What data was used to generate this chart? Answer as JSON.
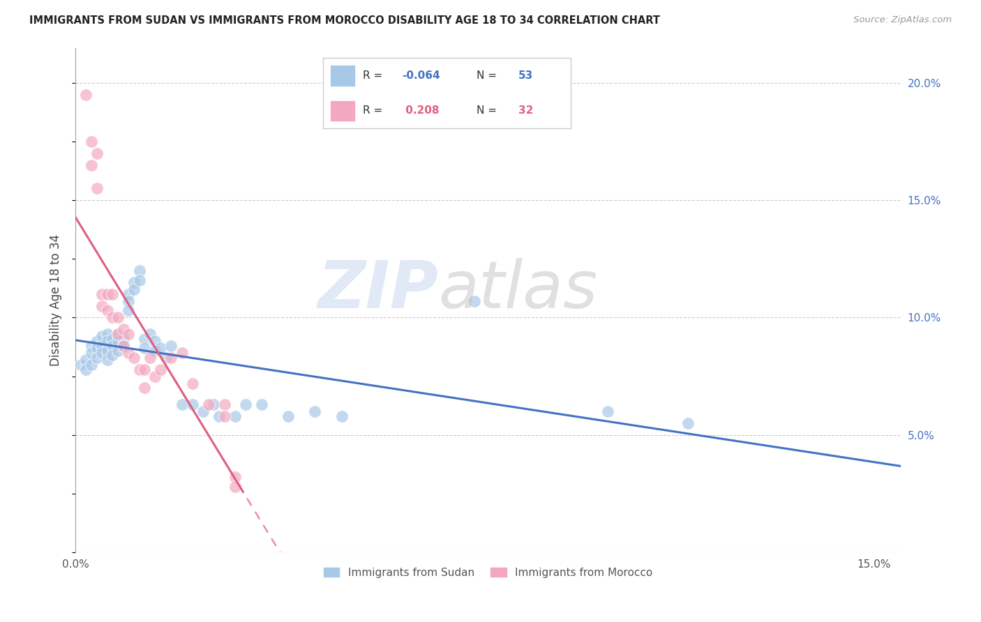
{
  "title": "IMMIGRANTS FROM SUDAN VS IMMIGRANTS FROM MOROCCO DISABILITY AGE 18 TO 34 CORRELATION CHART",
  "source": "Source: ZipAtlas.com",
  "ylabel": "Disability Age 18 to 34",
  "xlim": [
    0.0,
    0.155
  ],
  "ylim": [
    0.0,
    0.215
  ],
  "sudan_color": "#A8C8E8",
  "morocco_color": "#F4A8C0",
  "sudan_line_color": "#4472C4",
  "morocco_line_color": "#E06080",
  "sudan_R": -0.064,
  "sudan_N": 53,
  "morocco_R": 0.208,
  "morocco_N": 32,
  "sudan_x": [
    0.001,
    0.002,
    0.002,
    0.003,
    0.003,
    0.003,
    0.004,
    0.004,
    0.004,
    0.005,
    0.005,
    0.005,
    0.006,
    0.006,
    0.006,
    0.006,
    0.007,
    0.007,
    0.007,
    0.008,
    0.008,
    0.008,
    0.009,
    0.009,
    0.01,
    0.01,
    0.01,
    0.011,
    0.011,
    0.012,
    0.012,
    0.013,
    0.013,
    0.014,
    0.015,
    0.015,
    0.016,
    0.017,
    0.018,
    0.02,
    0.022,
    0.024,
    0.026,
    0.027,
    0.03,
    0.032,
    0.035,
    0.04,
    0.045,
    0.05,
    0.075,
    0.1,
    0.115
  ],
  "sudan_y": [
    0.08,
    0.082,
    0.078,
    0.088,
    0.085,
    0.08,
    0.09,
    0.087,
    0.083,
    0.092,
    0.088,
    0.085,
    0.093,
    0.09,
    0.086,
    0.082,
    0.091,
    0.088,
    0.084,
    0.093,
    0.09,
    0.086,
    0.091,
    0.088,
    0.11,
    0.107,
    0.103,
    0.115,
    0.112,
    0.12,
    0.116,
    0.091,
    0.087,
    0.093,
    0.09,
    0.086,
    0.087,
    0.083,
    0.088,
    0.063,
    0.063,
    0.06,
    0.063,
    0.058,
    0.058,
    0.063,
    0.063,
    0.058,
    0.06,
    0.058,
    0.107,
    0.06,
    0.055
  ],
  "morocco_x": [
    0.002,
    0.003,
    0.003,
    0.004,
    0.004,
    0.005,
    0.005,
    0.006,
    0.006,
    0.007,
    0.007,
    0.008,
    0.008,
    0.009,
    0.009,
    0.01,
    0.01,
    0.011,
    0.012,
    0.013,
    0.013,
    0.014,
    0.015,
    0.016,
    0.018,
    0.02,
    0.022,
    0.025,
    0.028,
    0.028,
    0.03,
    0.03
  ],
  "morocco_y": [
    0.195,
    0.175,
    0.165,
    0.17,
    0.155,
    0.11,
    0.105,
    0.11,
    0.103,
    0.11,
    0.1,
    0.1,
    0.093,
    0.095,
    0.088,
    0.093,
    0.085,
    0.083,
    0.078,
    0.078,
    0.07,
    0.083,
    0.075,
    0.078,
    0.083,
    0.085,
    0.072,
    0.063,
    0.063,
    0.058,
    0.032,
    0.028
  ],
  "morocco_line_start_x": 0.0,
  "morocco_line_end_x": 0.155,
  "sudan_line_start_x": 0.0,
  "sudan_line_end_x": 0.155
}
